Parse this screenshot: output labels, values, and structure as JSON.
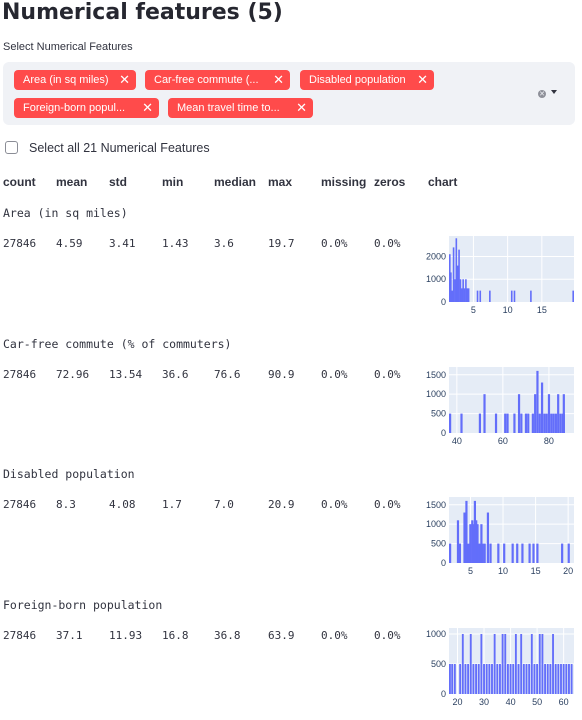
{
  "page": {
    "title": "Numerical features (5)",
    "select_label": "Select Numerical Features",
    "selected_tags": [
      "Area (in sq miles)",
      "Car-free commute (...",
      "Disabled population",
      "Foreign-born popul...",
      "Mean travel time to..."
    ],
    "select_all_label": "Select all 21 Numerical Features"
  },
  "table": {
    "headers": [
      "count",
      "mean",
      "std",
      "min",
      "median",
      "max",
      "missing",
      "zeros",
      "chart"
    ]
  },
  "features": [
    {
      "name": "Area (in sq miles)",
      "count": "27846",
      "mean": "4.59",
      "std": "3.41",
      "min": "1.43",
      "median": "3.6",
      "max": "19.7",
      "missing": "0.0%",
      "zeros": "0.0%"
    },
    {
      "name": "Car-free commute (% of commuters)",
      "count": "27846",
      "mean": "72.96",
      "std": "13.54",
      "min": "36.6",
      "median": "76.6",
      "max": "90.9",
      "missing": "0.0%",
      "zeros": "0.0%"
    },
    {
      "name": "Disabled population",
      "count": "27846",
      "mean": "8.3",
      "std": "4.08",
      "min": "1.7",
      "median": "7.0",
      "max": "20.9",
      "missing": "0.0%",
      "zeros": "0.0%"
    },
    {
      "name": "Foreign-born population",
      "count": "27846",
      "mean": "37.1",
      "std": "11.93",
      "min": "16.8",
      "median": "36.8",
      "max": "63.9",
      "missing": "0.0%",
      "zeros": "0.0%"
    }
  ],
  "colors": {
    "accent": "#ff4b4b",
    "bar": "#636efa",
    "plot_bg": "#e5ecf6"
  },
  "chart_data": [
    {
      "type": "bar",
      "title": "Area (in sq miles)",
      "xlim": [
        1.43,
        19.7
      ],
      "ylim": [
        0,
        2900
      ],
      "xticks": [
        5,
        10,
        15
      ],
      "yticks": [
        0,
        1000,
        2000
      ],
      "x": [
        1.5,
        1.7,
        1.9,
        2.1,
        2.3,
        2.5,
        2.7,
        2.9,
        3.1,
        3.3,
        3.5,
        3.7,
        3.9,
        4.1,
        4.3,
        5.6,
        6.0,
        7.4,
        10.6,
        11.0,
        13.4,
        19.6
      ],
      "values": [
        2100,
        1300,
        500,
        2400,
        1000,
        2800,
        1600,
        2300,
        1000,
        600,
        1000,
        600,
        1000,
        600,
        600,
        500,
        500,
        500,
        500,
        500,
        500,
        500
      ]
    },
    {
      "type": "bar",
      "title": "Car-free commute (% of commuters)",
      "xlim": [
        36.6,
        90.9
      ],
      "ylim": [
        0,
        1700
      ],
      "xticks": [
        40,
        60,
        80
      ],
      "yticks": [
        0,
        500,
        1000,
        1500
      ],
      "x": [
        37,
        44,
        52,
        54,
        59,
        63,
        64,
        67,
        69,
        70,
        72,
        73,
        75,
        76,
        77,
        78,
        79,
        80,
        81,
        82,
        83,
        84,
        85,
        86,
        87,
        88,
        89,
        90
      ],
      "values": [
        500,
        500,
        500,
        1000,
        500,
        500,
        500,
        500,
        1000,
        500,
        500,
        500,
        500,
        1000,
        1600,
        500,
        1300,
        500,
        500,
        1000,
        500,
        500,
        500,
        1000,
        500,
        500,
        1000,
        500
      ]
    },
    {
      "type": "bar",
      "title": "Disabled population",
      "xlim": [
        1.7,
        20.9
      ],
      "ylim": [
        0,
        1700
      ],
      "xticks": [
        5,
        10,
        15,
        20
      ],
      "yticks": [
        0,
        500,
        1000,
        1500
      ],
      "x": [
        2.0,
        3.4,
        3.7,
        4.4,
        4.7,
        5.0,
        5.3,
        5.6,
        5.8,
        6.0,
        6.2,
        6.4,
        6.6,
        6.8,
        7.0,
        7.2,
        7.5,
        8.0,
        8.4,
        9.6,
        10.5,
        11.8,
        12.5,
        13.3,
        14.4,
        15.0,
        15.6,
        19.4,
        20.8
      ],
      "values": [
        500,
        1100,
        500,
        1300,
        1600,
        500,
        1000,
        1100,
        1000,
        1600,
        1100,
        1000,
        500,
        500,
        1000,
        500,
        500,
        1300,
        500,
        500,
        500,
        500,
        500,
        500,
        500,
        500,
        500,
        500,
        500
      ]
    },
    {
      "type": "bar",
      "title": "Foreign-born population",
      "xlim": [
        16.8,
        63.9
      ],
      "ylim": [
        0,
        1100
      ],
      "xticks": [
        20,
        30,
        40,
        50,
        60
      ],
      "yticks": [
        0,
        500,
        1000
      ],
      "x": [
        17,
        18,
        19,
        21,
        22,
        23,
        24,
        25,
        26,
        27,
        28,
        29,
        30,
        31,
        32,
        33,
        34,
        35,
        36,
        37,
        38,
        39,
        40,
        41,
        42,
        43,
        44,
        45,
        46,
        47,
        48,
        49,
        50,
        51,
        52,
        53,
        54,
        55,
        56,
        57,
        58,
        59,
        60,
        61,
        62,
        63
      ],
      "values": [
        500,
        500,
        500,
        500,
        1000,
        500,
        500,
        1000,
        500,
        500,
        500,
        1000,
        500,
        500,
        500,
        500,
        1000,
        500,
        500,
        1000,
        1000,
        500,
        500,
        500,
        1000,
        500,
        1000,
        500,
        500,
        500,
        1000,
        500,
        500,
        1000,
        1000,
        500,
        500,
        500,
        1000,
        500,
        500,
        500,
        500,
        500,
        500,
        500
      ]
    }
  ]
}
